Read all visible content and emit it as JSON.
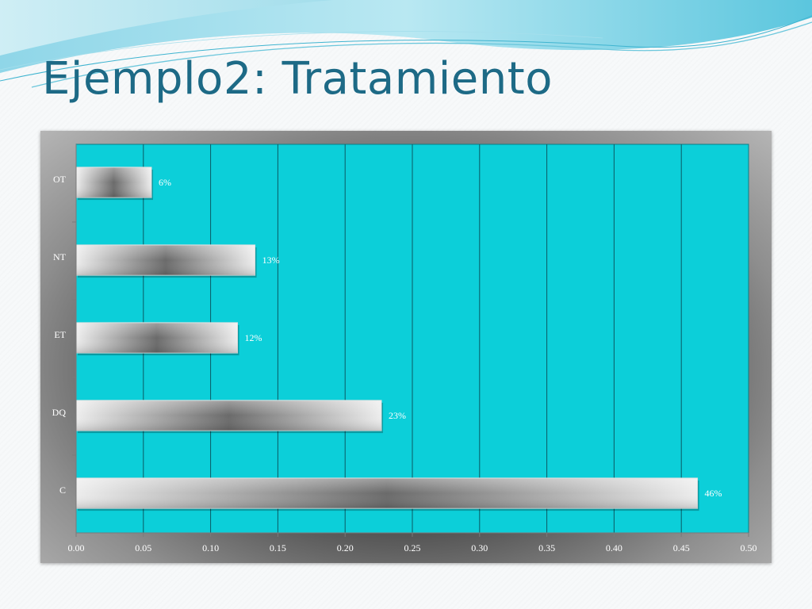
{
  "slide": {
    "title": "Ejemplo2: Tratamiento"
  },
  "colors": {
    "title": "#1d6a86",
    "plot_area": "#0ccfd9",
    "gridline": "#0a5560",
    "bar_edge": "#ececec",
    "bar_center": "#6a6a6a"
  },
  "chart_data": {
    "type": "bar",
    "orientation": "horizontal",
    "categories": [
      "OT",
      "NT",
      "ET",
      "DQ",
      "C"
    ],
    "values": [
      0.056,
      0.133,
      0.12,
      0.227,
      0.462
    ],
    "data_labels": [
      "6%",
      "13%",
      "12%",
      "23%",
      "46%"
    ],
    "xlim": [
      0,
      0.5
    ],
    "x_ticks": [
      "0.00",
      "0.05",
      "0.10",
      "0.15",
      "0.20",
      "0.25",
      "0.30",
      "0.35",
      "0.40",
      "0.45",
      "0.50"
    ],
    "grid": "vertical",
    "legend": "none"
  }
}
